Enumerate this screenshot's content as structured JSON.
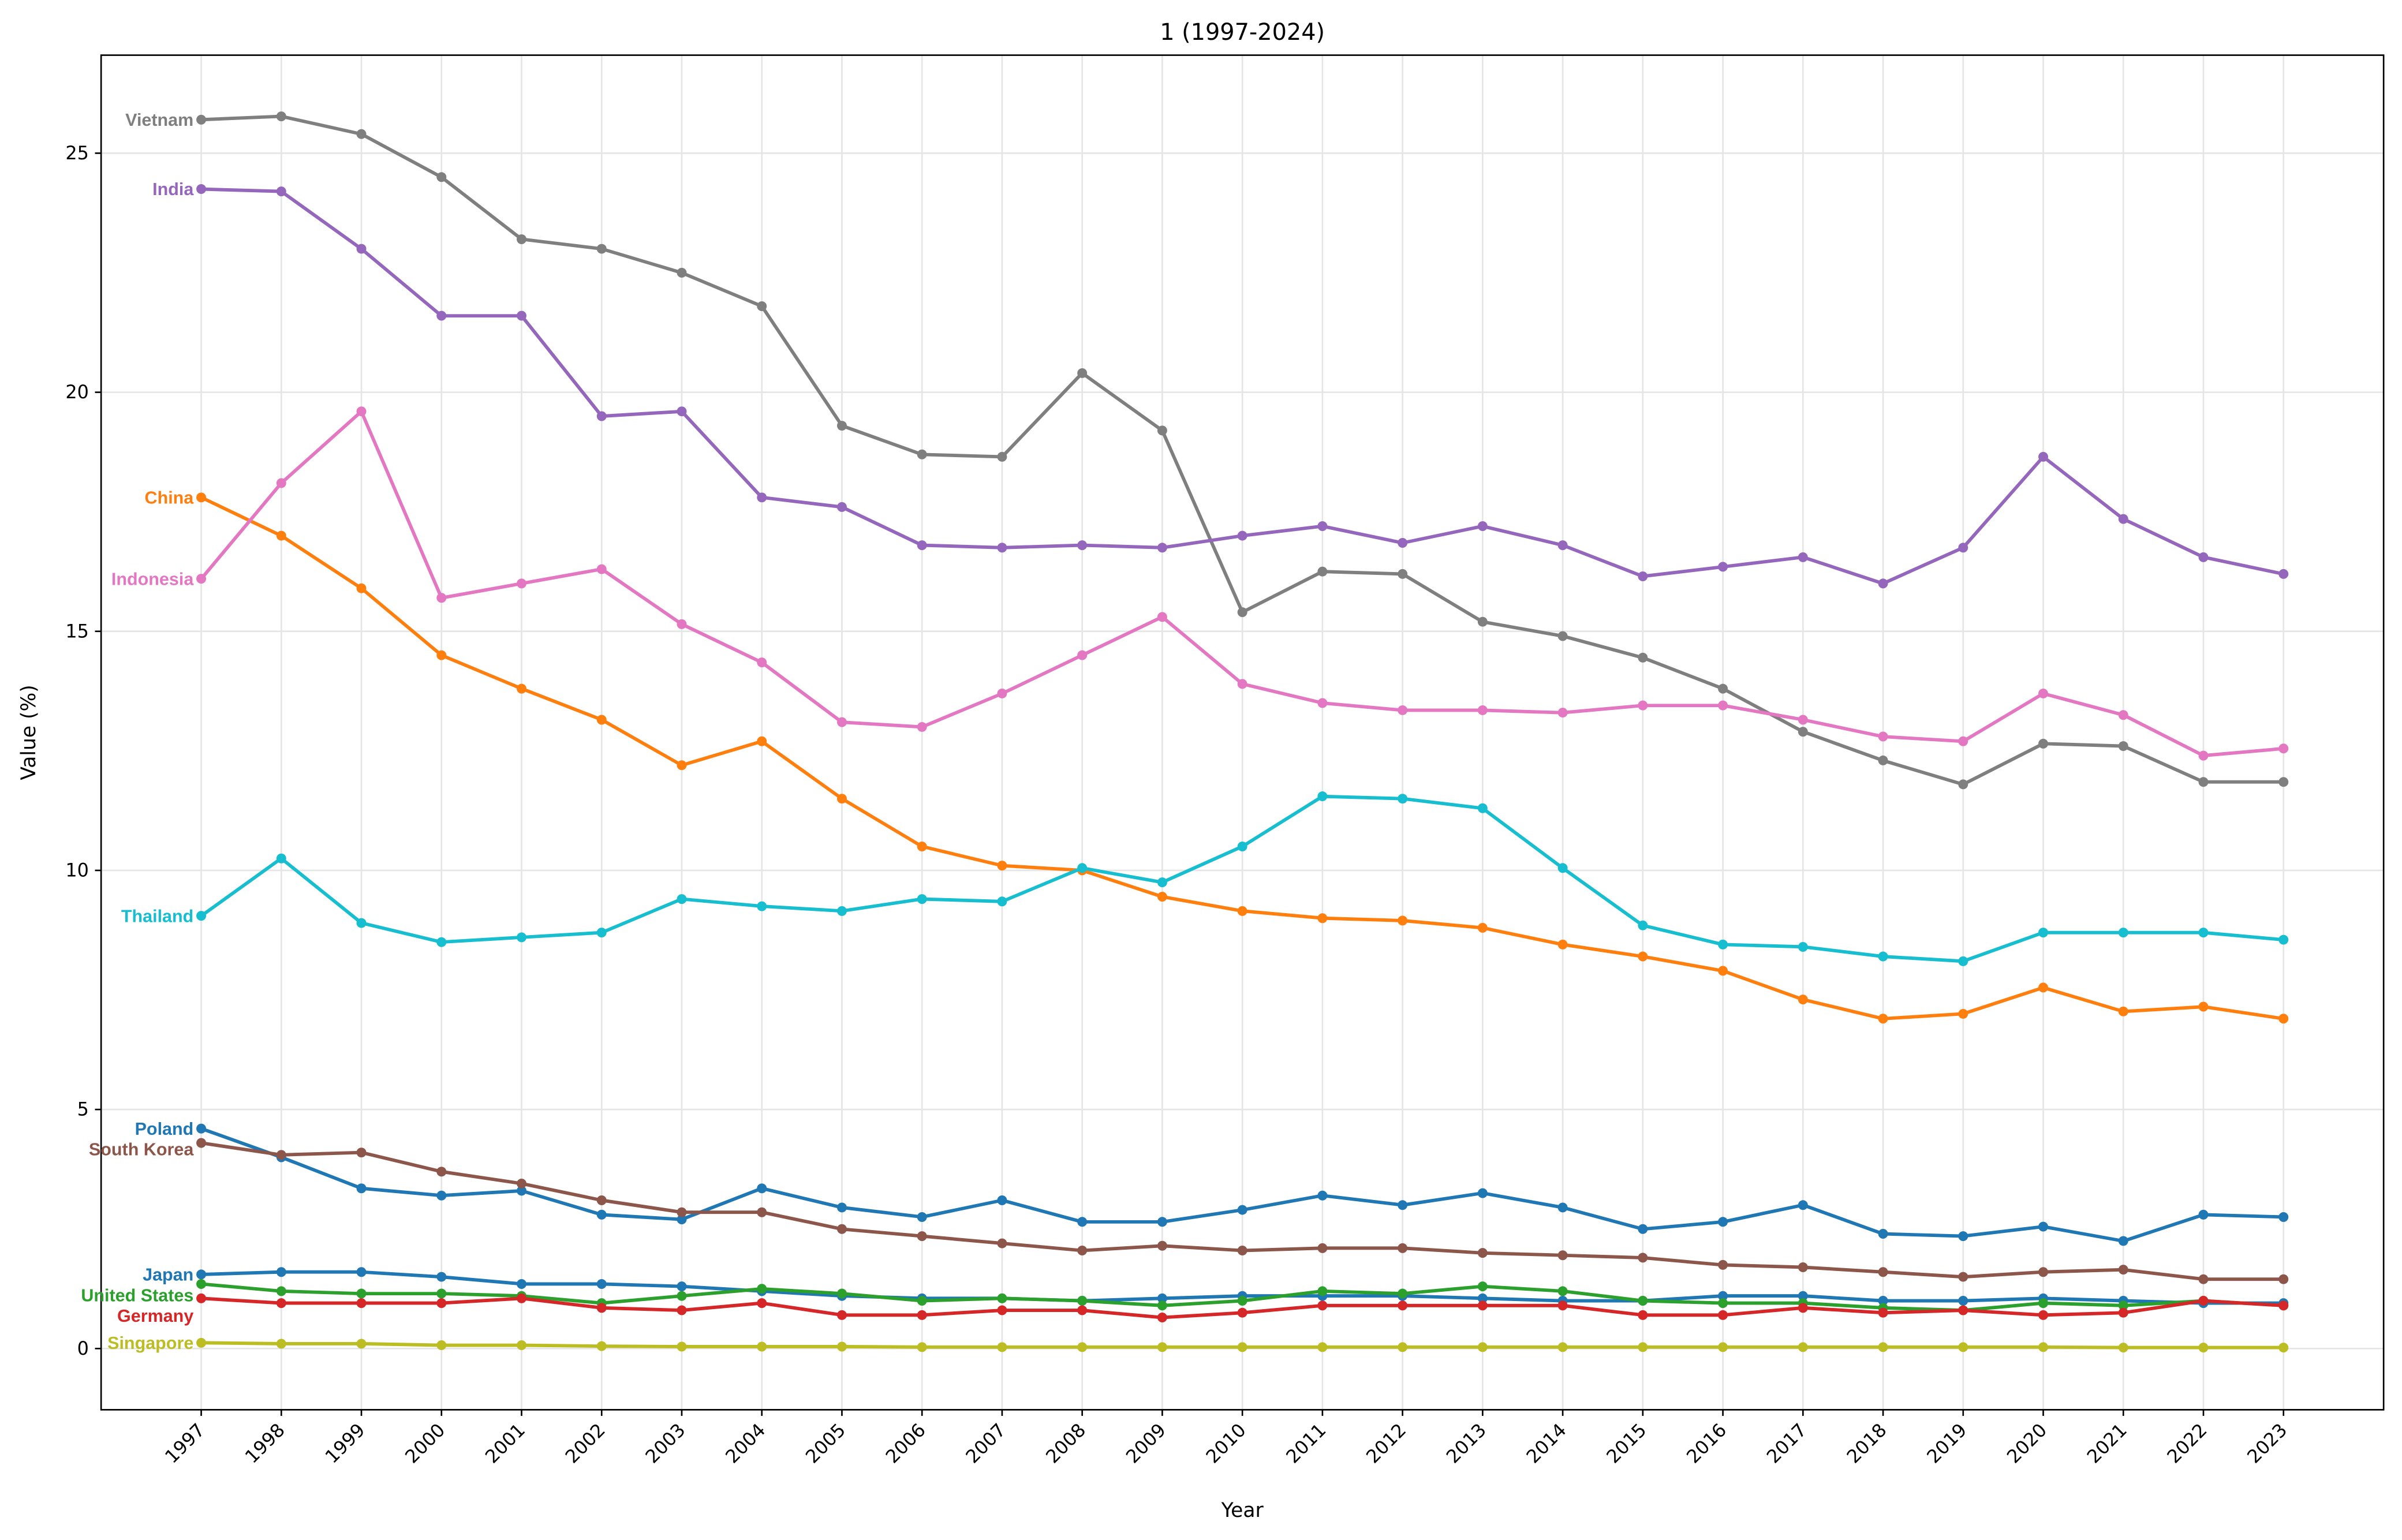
{
  "chart_data": {
    "type": "line",
    "title": "1 (1997-2024)",
    "xlabel": "Year",
    "ylabel": "Value (%)",
    "ylim": [
      -1.28,
      27.05
    ],
    "xlim": [
      1995.75,
      2024.25
    ],
    "grid": true,
    "legend": "inline labels at left of first point",
    "x": [
      1997,
      1998,
      1999,
      2000,
      2001,
      2002,
      2003,
      2004,
      2005,
      2006,
      2007,
      2008,
      2009,
      2010,
      2011,
      2012,
      2013,
      2014,
      2015,
      2016,
      2017,
      2018,
      2019,
      2020,
      2021,
      2022,
      2023
    ],
    "y_ticks": [
      0,
      5,
      10,
      15,
      20,
      25
    ],
    "series": [
      {
        "name": "Vietnam",
        "color": "#7f7f7f",
        "values": [
          25.7,
          25.77,
          25.4,
          24.5,
          23.2,
          23.0,
          22.5,
          21.8,
          19.3,
          18.7,
          18.65,
          20.4,
          19.2,
          15.4,
          16.25,
          16.2,
          15.2,
          14.9,
          14.45,
          13.8,
          12.9,
          12.3,
          11.8,
          12.65,
          12.6,
          11.85,
          11.85
        ]
      },
      {
        "name": "India",
        "color": "#9467bd",
        "values": [
          24.25,
          24.2,
          23.0,
          21.6,
          21.6,
          19.5,
          19.6,
          17.8,
          17.6,
          16.8,
          16.75,
          16.8,
          16.75,
          17.0,
          17.2,
          16.85,
          17.2,
          16.8,
          16.15,
          16.35,
          16.55,
          16.0,
          16.75,
          18.65,
          17.35,
          16.55,
          16.2
        ]
      },
      {
        "name": "China",
        "color": "#ff7f0e",
        "values": [
          17.8,
          17.0,
          15.9,
          14.5,
          13.8,
          13.15,
          12.2,
          12.7,
          11.5,
          10.5,
          10.1,
          10.0,
          9.45,
          9.15,
          9.0,
          8.95,
          8.8,
          8.45,
          8.2,
          7.9,
          7.3,
          6.9,
          7.0,
          7.55,
          7.05,
          7.15,
          6.9
        ]
      },
      {
        "name": "Indonesia",
        "color": "#e377c2",
        "values": [
          16.1,
          18.1,
          19.6,
          15.7,
          16.0,
          16.3,
          15.15,
          14.35,
          13.1,
          13.0,
          13.7,
          14.5,
          15.3,
          13.9,
          13.5,
          13.35,
          13.35,
          13.3,
          13.45,
          13.45,
          13.15,
          12.8,
          12.7,
          13.7,
          13.25,
          12.4,
          12.55
        ]
      },
      {
        "name": "Thailand",
        "color": "#17becf",
        "values": [
          9.05,
          10.25,
          8.9,
          8.5,
          8.6,
          8.7,
          9.4,
          9.25,
          9.15,
          9.4,
          9.35,
          10.05,
          9.75,
          10.5,
          11.55,
          11.5,
          11.3,
          10.05,
          8.85,
          8.45,
          8.4,
          8.2,
          8.1,
          8.7,
          8.7,
          8.7,
          8.55
        ]
      },
      {
        "name": "Poland",
        "color": "#1f77b4",
        "values": [
          4.6,
          4.0,
          3.35,
          3.2,
          3.3,
          2.8,
          2.7,
          3.35,
          2.95,
          2.75,
          3.1,
          2.65,
          2.65,
          2.9,
          3.2,
          3.0,
          3.25,
          2.95,
          2.5,
          2.65,
          3.0,
          2.4,
          2.35,
          2.55,
          2.25,
          2.8,
          2.75
        ]
      },
      {
        "name": "South Korea",
        "color": "#8c564b",
        "values": [
          4.3,
          4.05,
          4.1,
          3.7,
          3.45,
          3.1,
          2.85,
          2.85,
          2.5,
          2.35,
          2.2,
          2.05,
          2.15,
          2.05,
          2.1,
          2.1,
          2.0,
          1.95,
          1.9,
          1.75,
          1.7,
          1.6,
          1.5,
          1.6,
          1.65,
          1.45,
          1.45
        ]
      },
      {
        "name": "Japan",
        "color": "#1f77b4",
        "values": [
          1.55,
          1.6,
          1.6,
          1.5,
          1.35,
          1.35,
          1.3,
          1.2,
          1.1,
          1.05,
          1.05,
          1.0,
          1.05,
          1.1,
          1.1,
          1.1,
          1.05,
          1.0,
          1.0,
          1.1,
          1.1,
          1.0,
          1.0,
          1.05,
          1.0,
          0.95,
          0.95
        ]
      },
      {
        "name": "United States",
        "color": "#2ca02c",
        "values": [
          1.35,
          1.2,
          1.15,
          1.15,
          1.1,
          0.95,
          1.1,
          1.25,
          1.15,
          1.0,
          1.05,
          1.0,
          0.9,
          1.0,
          1.2,
          1.15,
          1.3,
          1.2,
          1.0,
          0.95,
          0.95,
          0.85,
          0.8,
          0.95,
          0.9,
          1.0,
          0.9
        ]
      },
      {
        "name": "Germany",
        "color": "#d62728",
        "values": [
          1.05,
          0.95,
          0.95,
          0.95,
          1.05,
          0.85,
          0.8,
          0.95,
          0.7,
          0.7,
          0.8,
          0.8,
          0.65,
          0.75,
          0.9,
          0.9,
          0.9,
          0.9,
          0.7,
          0.7,
          0.85,
          0.75,
          0.8,
          0.7,
          0.75,
          1.0,
          0.9
        ]
      },
      {
        "name": "Singapore",
        "color": "#bcbd22",
        "values": [
          0.12,
          0.1,
          0.1,
          0.07,
          0.07,
          0.05,
          0.04,
          0.04,
          0.04,
          0.03,
          0.03,
          0.03,
          0.03,
          0.03,
          0.03,
          0.03,
          0.03,
          0.03,
          0.03,
          0.03,
          0.03,
          0.03,
          0.03,
          0.03,
          0.02,
          0.02,
          0.02
        ]
      }
    ]
  }
}
